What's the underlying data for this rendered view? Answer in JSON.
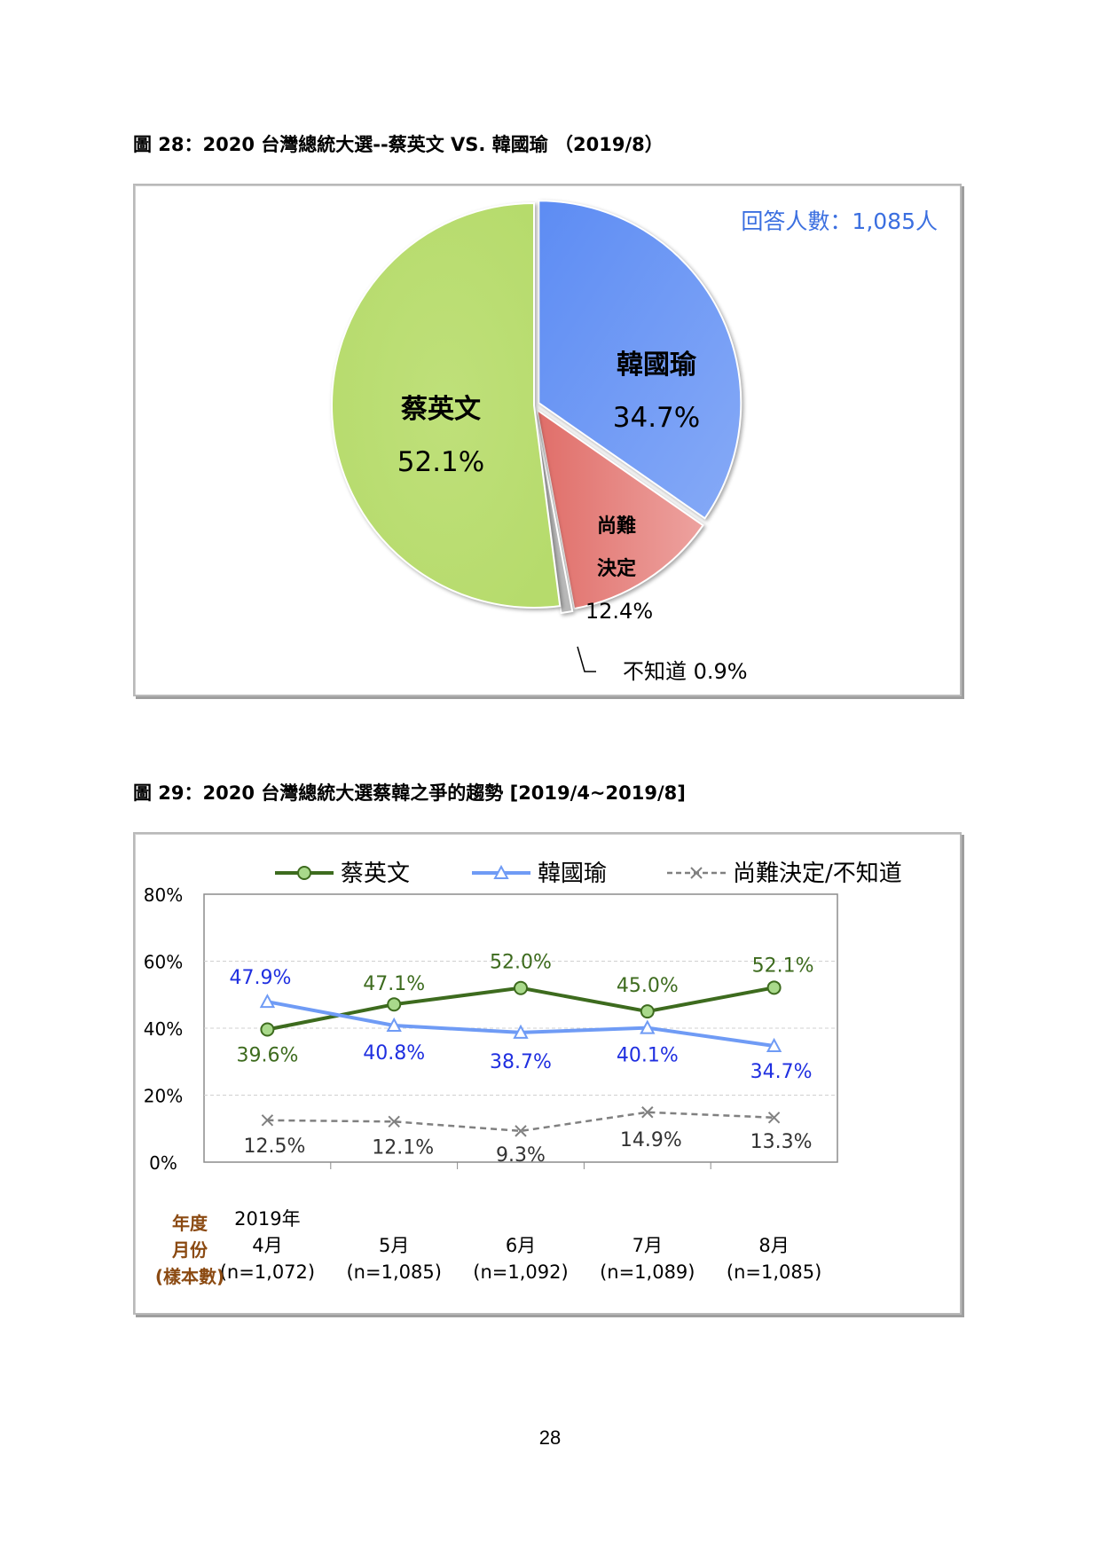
{
  "fig28": {
    "title": "圖 28：2020 台灣總統大選--蔡英文  VS.  韓國瑜  （2019/8）",
    "respondents": "回答人數：1,085人"
  },
  "fig29": {
    "title": "圖 29：2020 台灣總統大選蔡韓之爭的趨勢 [2019/4~2019/8]"
  },
  "page_number": "28",
  "chart_data": [
    {
      "type": "pie",
      "slices": [
        {
          "name": "韓國瑜",
          "value": 34.7,
          "label": "34.7%",
          "color": "#6f9bf5"
        },
        {
          "name": "尚難決定",
          "value": 12.4,
          "label": "12.4%",
          "color": "#e88a86"
        },
        {
          "name": "不知道",
          "value": 0.9,
          "label": "0.9%",
          "color": "#b8b8b8"
        },
        {
          "name": "蔡英文",
          "value": 52.1,
          "label": "52.1%",
          "color": "#bfe07a"
        }
      ],
      "slice_labels": {
        "han_name": "韓國瑜",
        "han_pct": "34.7%",
        "tsai_name": "蔡英文",
        "tsai_pct": "52.1%",
        "undecided_line1": "尚難",
        "undecided_line2": "決定",
        "undecided_pct": "12.4%",
        "unknown": "不知道 0.9%"
      }
    },
    {
      "type": "line",
      "categories": [
        "2019年\n4月\n(n=1,072)",
        "5月\n(n=1,085)",
        "6月\n(n=1,092)",
        "7月\n(n=1,089)",
        "8月\n(n=1,085)"
      ],
      "category_lines": [
        [
          "2019年",
          "4月",
          "(n=1,072)"
        ],
        [
          "",
          "5月",
          "(n=1,085)"
        ],
        [
          "",
          "6月",
          "(n=1,092)"
        ],
        [
          "",
          "7月",
          "(n=1,089)"
        ],
        [
          "",
          "8月",
          "(n=1,085)"
        ]
      ],
      "axis_header": [
        "年度",
        "月份",
        "(樣本數)"
      ],
      "ylim": [
        0,
        80
      ],
      "yticks": [
        0,
        20,
        40,
        60,
        80
      ],
      "ytick_labels": [
        "0%",
        "20%",
        "40%",
        "60%",
        "80%"
      ],
      "grid": true,
      "legend": "top",
      "series": [
        {
          "name": "蔡英文",
          "values": [
            39.6,
            47.1,
            52.0,
            45.0,
            52.1
          ],
          "labels": [
            "39.6%",
            "47.1%",
            "52.0%",
            "45.0%",
            "52.1%"
          ],
          "color": "#3d6b1e",
          "label_color": "#3d6b1e",
          "marker": "circle"
        },
        {
          "name": "韓國瑜",
          "values": [
            47.9,
            40.8,
            38.7,
            40.1,
            34.7
          ],
          "labels": [
            "47.9%",
            "40.8%",
            "38.7%",
            "40.1%",
            "34.7%"
          ],
          "color": "#6f9bf5",
          "label_color": "#1f2fe0",
          "marker": "triangle"
        },
        {
          "name": "尚難決定/不知道",
          "values": [
            12.5,
            12.1,
            9.3,
            14.9,
            13.3
          ],
          "labels": [
            "12.5%",
            "12.1%",
            "9.3%",
            "14.9%",
            "13.3%"
          ],
          "color": "#808080",
          "label_color": "#333333",
          "marker": "x"
        }
      ]
    }
  ]
}
